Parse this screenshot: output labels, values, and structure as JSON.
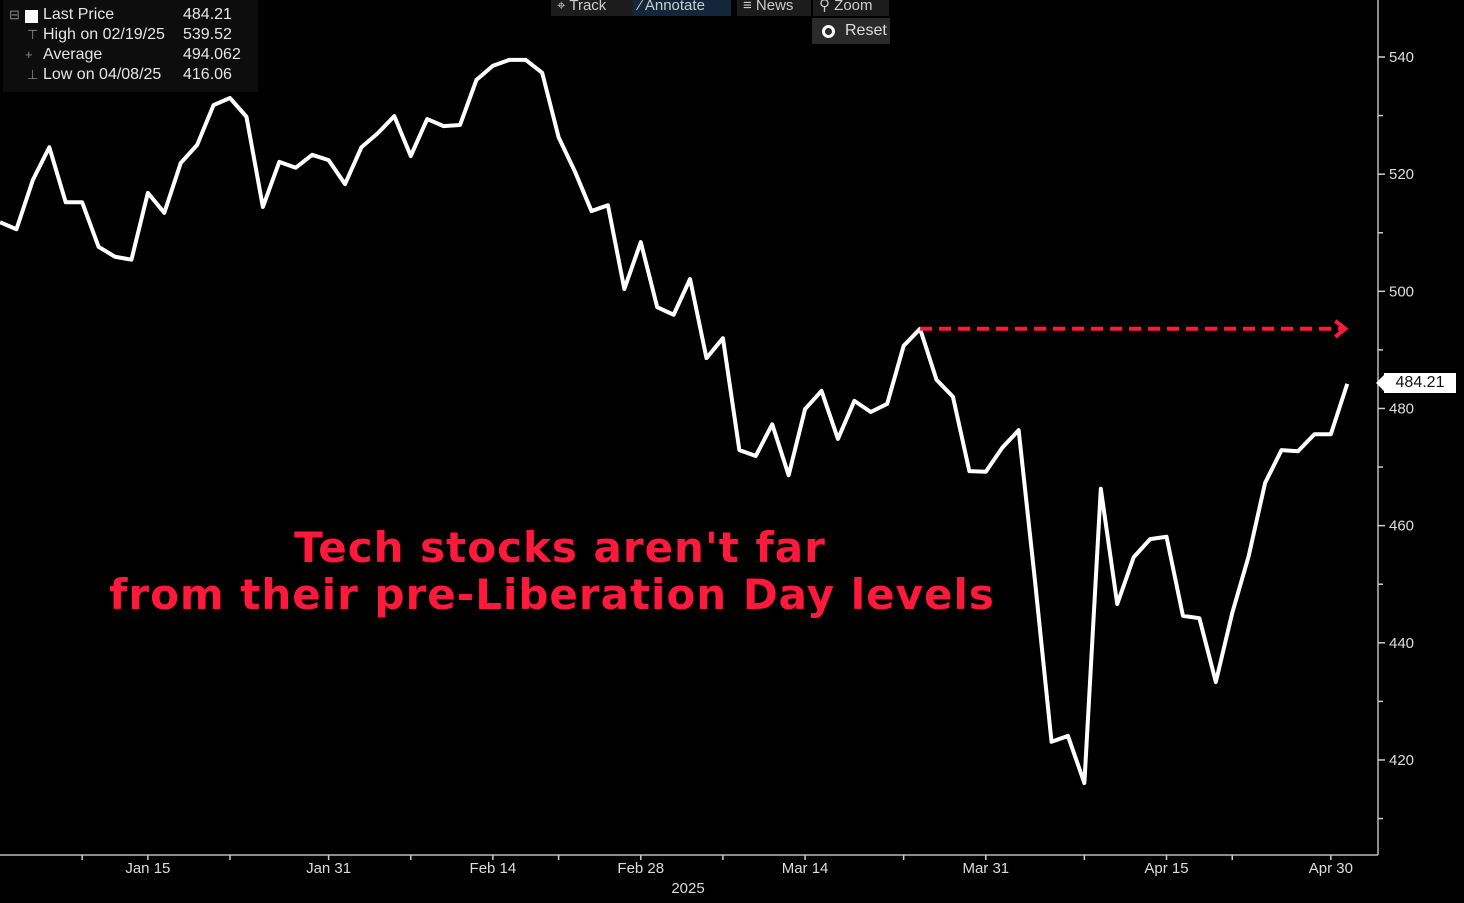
{
  "toolbar": {
    "track": "Track",
    "annotate": "Annotate",
    "news": "News",
    "zoom": "Zoom",
    "reset": "Reset"
  },
  "legend": {
    "last_price": {
      "label": "Last Price",
      "value": "484.21"
    },
    "high": {
      "label": "High on 02/19/25",
      "value": "539.52"
    },
    "average": {
      "label": "Average",
      "value": "494.062"
    },
    "low": {
      "label": "Low on 04/08/25",
      "value": "416.06"
    }
  },
  "annotation": {
    "line1": "Tech stocks aren't far",
    "line2": "from their pre-Liberation Day levels"
  },
  "last_value_label": "484.21",
  "colors": {
    "line": "#ffffff",
    "annotation": "#ff1a3c",
    "axis": "#bbbbbb",
    "background": "#000000"
  },
  "chart_data": {
    "type": "line",
    "title": "",
    "xlabel": "2025",
    "ylabel": "",
    "ylim": [
      403,
      548
    ],
    "x_unit": "trading-day index",
    "y_ticks": [
      420,
      440,
      460,
      480,
      500,
      520,
      540
    ],
    "y_minor_ticks": [
      410,
      430,
      450,
      470,
      490,
      510,
      530
    ],
    "x_ticks": [
      {
        "index": 9,
        "label": "Jan 15"
      },
      {
        "index": 20,
        "label": "Jan 31"
      },
      {
        "index": 30,
        "label": "Feb 14"
      },
      {
        "index": 39,
        "label": "Feb 28"
      },
      {
        "index": 49,
        "label": "Mar 14"
      },
      {
        "index": 60,
        "label": "Mar 31"
      },
      {
        "index": 71,
        "label": "Apr 15"
      },
      {
        "index": 81,
        "label": "Apr 30"
      }
    ],
    "x_minor_ticks": [
      5,
      14,
      25,
      34,
      44,
      55,
      66,
      75
    ],
    "series": [
      {
        "name": "Last Price",
        "values": [
          511.8,
          510.6,
          519.0,
          524.6,
          515.2,
          515.2,
          507.6,
          505.9,
          505.4,
          516.8,
          513.4,
          521.9,
          525.0,
          531.8,
          533.0,
          529.8,
          514.4,
          522.1,
          521.1,
          523.3,
          522.4,
          518.3,
          524.6,
          527.0,
          529.9,
          523.1,
          529.4,
          528.2,
          528.4,
          536.1,
          538.5,
          539.5,
          539.5,
          537.3,
          526.3,
          520.4,
          513.7,
          514.7,
          500.4,
          508.4,
          497.3,
          496.0,
          502.1,
          488.6,
          492.0,
          472.9,
          471.9,
          477.3,
          468.6,
          479.9,
          483.0,
          474.8,
          481.3,
          479.4,
          480.8,
          490.7,
          493.6,
          484.9,
          482.0,
          469.3,
          469.2,
          473.3,
          476.3,
          450.4,
          423.1,
          424.1,
          416.06,
          466.3,
          446.6,
          454.6,
          457.7,
          458.1,
          444.6,
          444.2,
          433.3,
          445.1,
          454.8,
          467.3,
          472.9,
          472.7,
          475.6,
          475.6,
          484.21
        ]
      }
    ],
    "annotations": [
      {
        "type": "dashed-arrow",
        "from_index": 56,
        "to_index": 82,
        "value": 493.6
      }
    ]
  }
}
